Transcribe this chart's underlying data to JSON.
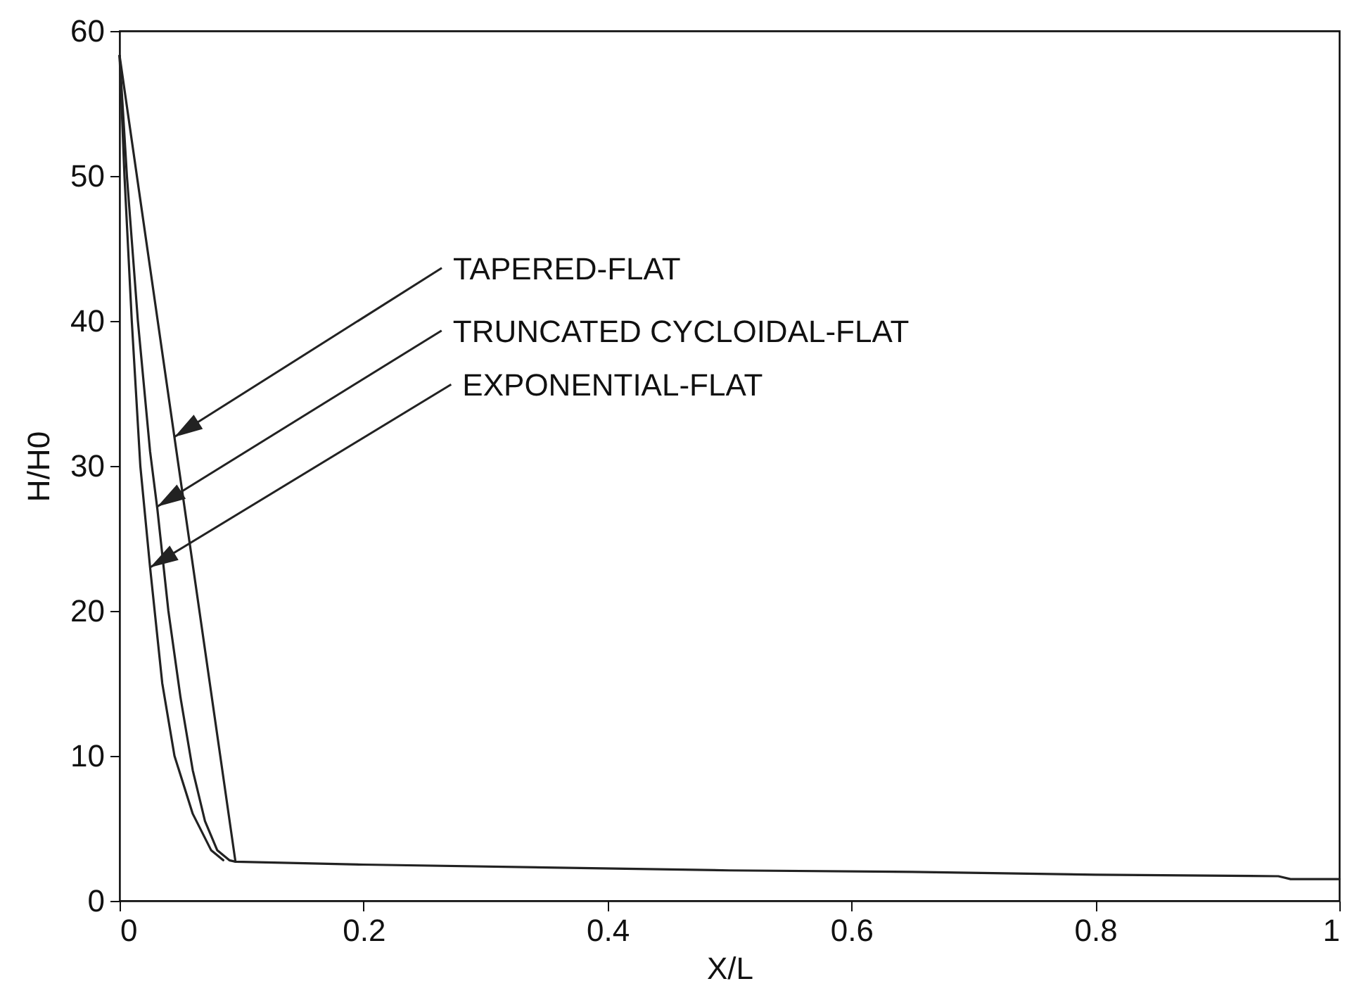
{
  "chart_data": {
    "type": "line",
    "xlabel": "X/L",
    "ylabel": "H/H0",
    "xlim": [
      0,
      1
    ],
    "ylim": [
      0,
      60
    ],
    "xticks": [
      0,
      0.2,
      0.4,
      0.6,
      0.8,
      1
    ],
    "yticks": [
      0,
      10,
      20,
      30,
      40,
      50,
      60
    ],
    "grid": false,
    "legend": false,
    "marker": "none",
    "line_style": "solid",
    "series": [
      {
        "color": "#222222",
        "x": [
          0,
          0.095,
          0.2,
          0.35,
          0.5,
          0.65,
          0.8,
          0.95,
          0.96,
          1
        ],
        "values": [
          58.3,
          2.7,
          2.5,
          2.3,
          2.1,
          2,
          1.8,
          1.7,
          1.5,
          1.5
        ]
      },
      {
        "color": "#222222",
        "x": [
          0,
          0.006,
          0.015,
          0.025,
          0.031,
          0.04,
          0.05,
          0.06,
          0.07,
          0.08,
          0.09,
          0.095
        ],
        "values": [
          58.3,
          50,
          40,
          31,
          27,
          20,
          14,
          9,
          5.5,
          3.5,
          2.8,
          2.7
        ]
      },
      {
        "color": "#222222",
        "x": [
          0,
          0.004,
          0.01,
          0.017,
          0.025,
          0.035,
          0.045,
          0.06,
          0.075,
          0.085
        ],
        "values": [
          58.3,
          50,
          40,
          30,
          23,
          15,
          10,
          6,
          3.5,
          2.8
        ]
      }
    ],
    "annotations": [
      {
        "text": "TAPERED-FLAT",
        "x": 0.045,
        "y": 32
      },
      {
        "text": "TRUNCATED CYCLOIDAL-FLAT",
        "x": 0.031,
        "y": 27.2
      },
      {
        "text": "EXPONENTIAL-FLAT",
        "x": 0.025,
        "y": 23
      }
    ]
  }
}
